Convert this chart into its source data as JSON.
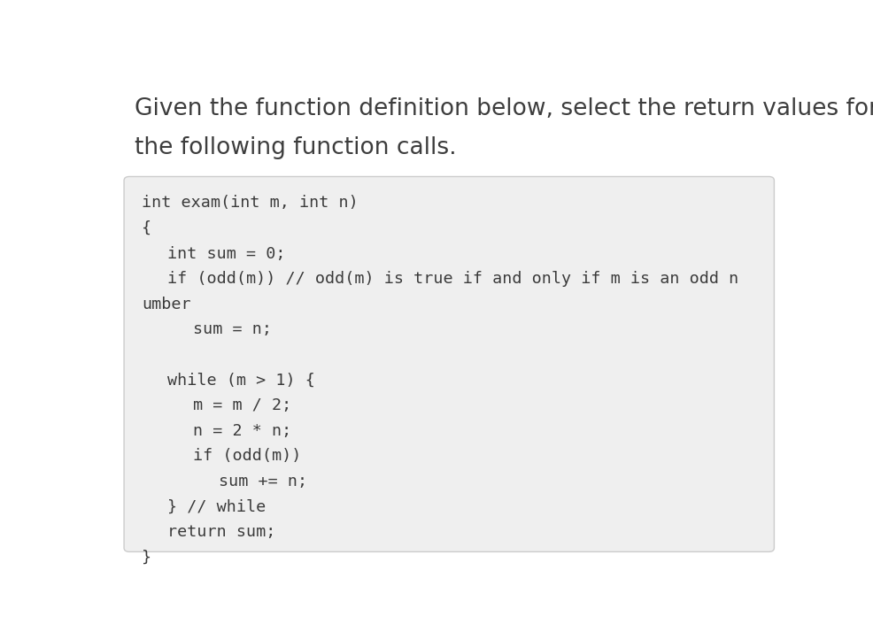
{
  "background_color": "#ffffff",
  "title_text_line1": "Given the function definition below, select the return values for",
  "title_text_line2": "the following function calls.",
  "title_color": "#3d3d3d",
  "title_fontsize": 19,
  "box_background": "#efefef",
  "box_border_color": "#cccccc",
  "code_color": "#3a3a3a",
  "code_fontsize": 13.2,
  "code_lines": [
    [
      0,
      "int exam(int m, int n)"
    ],
    [
      0,
      "{"
    ],
    [
      1,
      "int sum = 0;"
    ],
    [
      1,
      "if (odd(m)) // odd(m) is true if and only if m is an odd n"
    ],
    [
      -1,
      "umber"
    ],
    [
      2,
      "sum = n;"
    ],
    [
      0,
      ""
    ],
    [
      1,
      "while (m > 1) {"
    ],
    [
      2,
      "m = m / 2;"
    ],
    [
      2,
      "n = 2 * n;"
    ],
    [
      2,
      "if (odd(m))"
    ],
    [
      3,
      "sum += n;"
    ],
    [
      1,
      "} // while"
    ],
    [
      1,
      "return sum;"
    ],
    [
      0,
      "}"
    ]
  ]
}
